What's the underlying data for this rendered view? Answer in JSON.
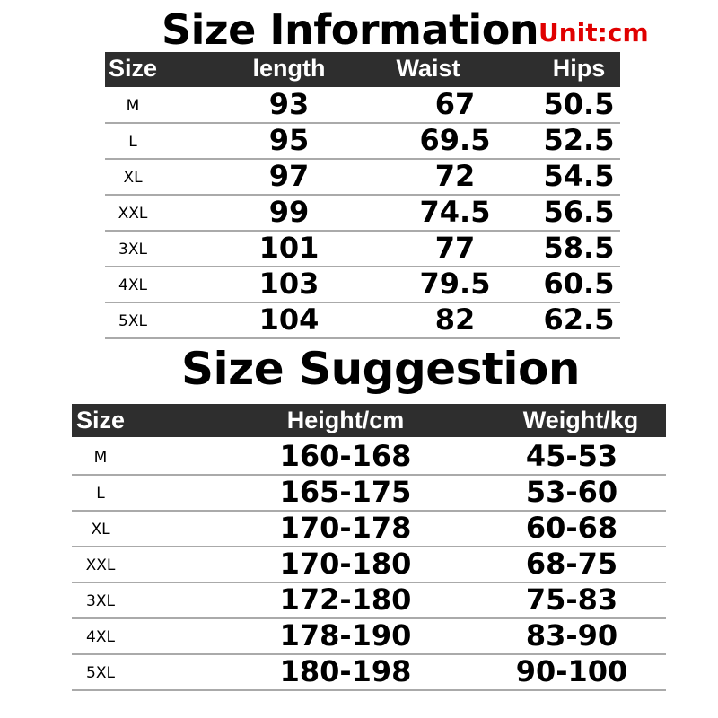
{
  "size_information": {
    "title": "Size Information",
    "unit": "Unit:cm",
    "headers": [
      "Size",
      "length",
      "Waist",
      "Hips"
    ],
    "rows": [
      [
        "M",
        "93",
        "67",
        "50.5"
      ],
      [
        "L",
        "95",
        "69.5",
        "52.5"
      ],
      [
        "XL",
        "97",
        "72",
        "54.5"
      ],
      [
        "XXL",
        "99",
        "74.5",
        "56.5"
      ],
      [
        "3XL",
        "101",
        "77",
        "58.5"
      ],
      [
        "4XL",
        "103",
        "79.5",
        "60.5"
      ],
      [
        "5XL",
        "104",
        "82",
        "62.5"
      ]
    ]
  },
  "size_suggestion": {
    "title": "Size Suggestion",
    "headers": [
      "Size",
      "Height/cm",
      "Weight/kg"
    ],
    "rows": [
      [
        "M",
        "160-168",
        "45-53"
      ],
      [
        "L",
        "165-175",
        "53-60"
      ],
      [
        "XL",
        "170-178",
        "60-68"
      ],
      [
        "XXL",
        "170-180",
        "68-75"
      ],
      [
        "3XL",
        "172-180",
        "75-83"
      ],
      [
        "4XL",
        "178-190",
        "83-90"
      ],
      [
        "5XL",
        "180-198",
        "90-100"
      ]
    ]
  },
  "colors": {
    "header_bg": "#2e2e2e",
    "unit_text": "#e00000"
  }
}
